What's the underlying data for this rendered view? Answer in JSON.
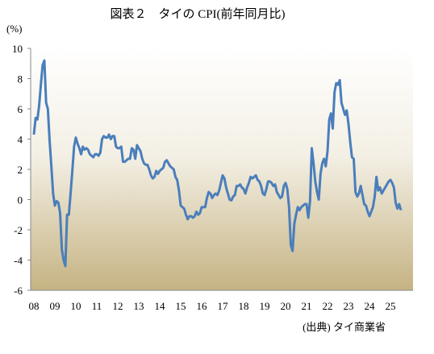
{
  "chart_data": {
    "type": "line",
    "title": "図表２　タイの CPI(前年同月比)",
    "y_label": "(%)",
    "source": "(出典) タイ商業省",
    "categories": [
      "08",
      null,
      null,
      null,
      null,
      null,
      null,
      null,
      null,
      null,
      null,
      null,
      "09",
      null,
      null,
      null,
      null,
      null,
      null,
      null,
      null,
      null,
      null,
      null,
      "10",
      null,
      null,
      null,
      null,
      null,
      null,
      null,
      null,
      null,
      null,
      null,
      "11",
      null,
      null,
      null,
      null,
      null,
      null,
      null,
      null,
      null,
      null,
      null,
      "12",
      null,
      null,
      null,
      null,
      null,
      null,
      null,
      null,
      null,
      null,
      null,
      "13",
      null,
      null,
      null,
      null,
      null,
      null,
      null,
      null,
      null,
      null,
      null,
      "14",
      null,
      null,
      null,
      null,
      null,
      null,
      null,
      null,
      null,
      null,
      null,
      "15",
      null,
      null,
      null,
      null,
      null,
      null,
      null,
      null,
      null,
      null,
      null,
      "16",
      null,
      null,
      null,
      null,
      null,
      null,
      null,
      null,
      null,
      null,
      null,
      "17",
      null,
      null,
      null,
      null,
      null,
      null,
      null,
      null,
      null,
      null,
      null,
      "18",
      null,
      null,
      null,
      null,
      null,
      null,
      null,
      null,
      null,
      null,
      null,
      "19",
      null,
      null,
      null,
      null,
      null,
      null,
      null,
      null,
      null,
      null,
      null,
      "20",
      null,
      null,
      null,
      null,
      null,
      null,
      null,
      null,
      null,
      null,
      null,
      "21",
      null,
      null,
      null,
      null,
      null,
      null,
      null,
      null,
      null,
      null,
      null,
      "22",
      null,
      null,
      null,
      null,
      null,
      null,
      null,
      null,
      null,
      null,
      null,
      "23",
      null,
      null,
      null,
      null,
      null,
      null,
      null,
      null,
      null,
      null,
      null,
      "24",
      null,
      null,
      null,
      null,
      null,
      null,
      null,
      null,
      null,
      null,
      null,
      "25",
      null,
      null,
      null,
      null,
      null,
      null
    ],
    "values": [
      4.3,
      5.4,
      5.3,
      6.2,
      7.6,
      8.9,
      9.2,
      6.4,
      6.0,
      3.9,
      2.2,
      0.4,
      -0.4,
      -0.1,
      -0.2,
      -0.9,
      -3.3,
      -4.0,
      -4.4,
      -1.0,
      -1.0,
      0.4,
      1.9,
      3.5,
      4.1,
      3.7,
      3.4,
      3.0,
      3.5,
      3.3,
      3.4,
      3.3,
      3.0,
      2.9,
      2.8,
      3.0,
      3.0,
      2.9,
      3.1,
      4.0,
      4.2,
      4.1,
      4.1,
      4.3,
      4.0,
      4.2,
      4.2,
      3.5,
      3.4,
      3.4,
      3.5,
      2.5,
      2.5,
      2.6,
      2.7,
      2.7,
      3.4,
      3.3,
      2.7,
      3.6,
      3.4,
      3.2,
      2.7,
      2.4,
      2.3,
      2.3,
      2.0,
      1.6,
      1.4,
      1.5,
      1.9,
      1.7,
      1.9,
      2.0,
      2.1,
      2.5,
      2.6,
      2.4,
      2.2,
      2.1,
      2.0,
      1.5,
      1.3,
      0.6,
      -0.4,
      -0.5,
      -0.6,
      -1.0,
      -1.3,
      -1.1,
      -1.1,
      -1.2,
      -1.1,
      -0.8,
      -1.0,
      -0.9,
      -0.5,
      -0.5,
      -0.5,
      0.1,
      0.5,
      0.4,
      0.1,
      0.3,
      0.4,
      0.3,
      0.6,
      1.1,
      1.6,
      1.4,
      0.8,
      0.4,
      0.0,
      -0.05,
      0.2,
      0.3,
      0.9,
      0.9,
      1.0,
      0.8,
      0.7,
      0.4,
      0.8,
      1.1,
      1.5,
      1.4,
      1.5,
      1.6,
      1.3,
      1.2,
      0.9,
      0.4,
      0.3,
      0.7,
      1.2,
      1.2,
      1.1,
      0.9,
      1.0,
      0.5,
      0.3,
      0.1,
      0.2,
      0.9,
      1.1,
      0.7,
      -0.5,
      -3.0,
      -3.4,
      -1.6,
      -1.0,
      -0.5,
      -0.7,
      -0.5,
      -0.4,
      -0.3,
      -0.3,
      -1.2,
      -0.1,
      3.4,
      2.4,
      1.2,
      0.5,
      0.0,
      1.7,
      2.4,
      2.7,
      2.2,
      3.2,
      5.3,
      5.7,
      4.7,
      7.1,
      7.7,
      7.6,
      7.9,
      6.4,
      6.0,
      5.6,
      5.9,
      5.0,
      3.8,
      2.8,
      2.7,
      0.5,
      0.2,
      0.4,
      0.9,
      0.3,
      -0.3,
      -0.4,
      -0.8,
      -1.1,
      -0.8,
      -0.5,
      0.2,
      1.5,
      0.6,
      0.8,
      0.4,
      0.6,
      0.8,
      1.0,
      1.2,
      1.3,
      1.1,
      0.8,
      -0.2,
      -0.6,
      -0.3,
      -0.7
    ],
    "color": "#4a7ebb",
    "ylim": [
      -6,
      10
    ],
    "yticks": [
      -6,
      -4,
      -2,
      0,
      2,
      4,
      6,
      8,
      10
    ],
    "grid": false
  }
}
